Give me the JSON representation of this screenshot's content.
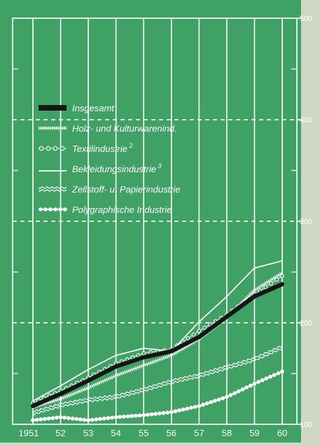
{
  "colors": {
    "panel": "#3fa164",
    "page": "#cfd7c4",
    "ink": "#ffffff",
    "total": "#161616"
  },
  "chart_data": {
    "type": "line",
    "x": [
      "1951",
      "52",
      "53",
      "54",
      "55",
      "56",
      "57",
      "58",
      "59",
      "60"
    ],
    "y_ticks": [
      100,
      200,
      300,
      400,
      500
    ],
    "ylim": [
      100,
      500
    ],
    "grid": true,
    "legend_position": "top-left",
    "series": [
      {
        "name": "Insgesamt",
        "style": "thick-dark",
        "values": [
          118,
          130,
          143,
          157,
          166,
          172,
          186,
          206,
          226,
          238
        ]
      },
      {
        "name": "Holz- und Kulturwarenind.",
        "style": "hatched",
        "values": [
          117,
          125,
          136,
          148,
          158,
          168,
          184,
          205,
          232,
          249
        ]
      },
      {
        "name": "Textilindustrie",
        "superscript": "2",
        "style": "circles",
        "values": [
          121,
          133,
          146,
          160,
          170,
          174,
          192,
          208,
          228,
          246
        ]
      },
      {
        "name": "Bekleidungsindustrie",
        "superscript": "3",
        "style": "double",
        "values": [
          125,
          140,
          156,
          170,
          177,
          174,
          203,
          228,
          256,
          263
        ]
      },
      {
        "name": "Zellstoff- u. Papierindustrie",
        "style": "wavy",
        "values": [
          111,
          119,
          124,
          127,
          134,
          142,
          148,
          156,
          164,
          176
        ]
      },
      {
        "name": "Polygraphische Industrie",
        "style": "dotted-circles",
        "values": [
          104,
          107,
          104,
          107,
          109,
          112,
          118,
          127,
          140,
          152
        ]
      }
    ]
  }
}
